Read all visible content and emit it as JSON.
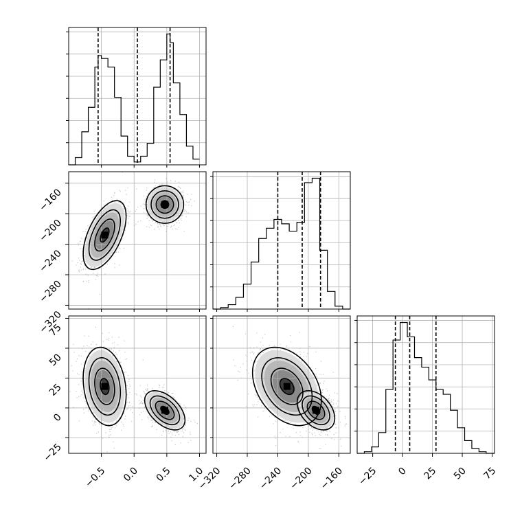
{
  "chart_data": {
    "type": "corner",
    "parameters": [
      {
        "name": "",
        "range": [
          -1.0,
          1.1
        ],
        "ticks": [
          -0.5,
          0.0,
          0.5,
          1.0
        ],
        "tick_labels": [
          "-0.5",
          "0.0",
          "0.5",
          "1.0"
        ]
      },
      {
        "name": "",
        "range": [
          -325,
          -145
        ],
        "ticks": [
          -320,
          -280,
          -240,
          -200,
          -160
        ],
        "tick_labels": [
          "-320",
          "-280",
          "-240",
          "-200",
          "-160"
        ]
      },
      {
        "name": "",
        "range": [
          -38,
          77
        ],
        "ticks": [
          -25,
          0,
          25,
          50,
          75
        ],
        "tick_labels": [
          "-25",
          "0",
          "25",
          "50",
          "75"
        ]
      }
    ],
    "grid": true,
    "quantiles": [
      [
        -0.55,
        0.05,
        0.55
      ],
      [
        -240,
        -208,
        -184
      ],
      [
        -6,
        6,
        28
      ]
    ],
    "histograms": [
      {
        "bins": [
          -1.0,
          -0.9,
          -0.8,
          -0.7,
          -0.6,
          -0.55,
          -0.5,
          -0.4,
          -0.3,
          -0.2,
          -0.1,
          0.0,
          0.1,
          0.2,
          0.3,
          0.4,
          0.5,
          0.55,
          0.6,
          0.7,
          0.8,
          0.9,
          1.0
        ],
        "counts": [
          0,
          0.05,
          0.23,
          0.4,
          0.68,
          0.76,
          0.74,
          0.68,
          0.47,
          0.2,
          0.06,
          0.02,
          0.06,
          0.15,
          0.54,
          0.73,
          0.91,
          0.85,
          0.57,
          0.35,
          0.13,
          0.04
        ]
      },
      {
        "bins": [
          -325,
          -315,
          -305,
          -295,
          -285,
          -275,
          -265,
          -255,
          -245,
          -235,
          -225,
          -215,
          -205,
          -195,
          -185,
          -175,
          -165,
          -155,
          -145
        ],
        "counts": [
          0,
          0.01,
          0.03,
          0.08,
          0.17,
          0.32,
          0.48,
          0.55,
          0.61,
          0.58,
          0.53,
          0.59,
          0.86,
          0.89,
          0.4,
          0.12,
          0.02,
          0
        ]
      },
      {
        "bins": [
          -38,
          -32,
          -26,
          -20,
          -14,
          -8,
          -2,
          4,
          10,
          16,
          22,
          28,
          34,
          40,
          46,
          52,
          58,
          64,
          70,
          77
        ],
        "counts": [
          0,
          0.01,
          0.04,
          0.13,
          0.4,
          0.71,
          0.82,
          0.73,
          0.6,
          0.54,
          0.46,
          0.4,
          0.37,
          0.27,
          0.16,
          0.08,
          0.03,
          0.01,
          0
        ]
      }
    ],
    "panels_2d": [
      {
        "x_param": 0,
        "y_param": 1,
        "modes": [
          {
            "cx": -0.45,
            "cy": -228,
            "sx": 0.16,
            "sy": 22,
            "rho": 0.55,
            "weight": 0.5
          },
          {
            "cx": 0.47,
            "cy": -188,
            "sx": 0.14,
            "sy": 12,
            "rho": 0.0,
            "weight": 0.5
          }
        ]
      },
      {
        "x_param": 0,
        "y_param": 2,
        "modes": [
          {
            "cx": -0.45,
            "cy": 18,
            "sx": 0.16,
            "sy": 16,
            "rho": -0.2,
            "weight": 0.5
          },
          {
            "cx": 0.47,
            "cy": -2,
            "sx": 0.15,
            "sy": 8,
            "rho": -0.5,
            "weight": 0.5
          }
        ]
      },
      {
        "x_param": 1,
        "y_param": 2,
        "modes": [
          {
            "cx": -228,
            "cy": 18,
            "sx": 22,
            "sy": 16,
            "rho": -0.35,
            "weight": 0.5
          },
          {
            "cx": -190,
            "cy": -2,
            "sx": 12,
            "sy": 8,
            "rho": -0.4,
            "weight": 0.5
          }
        ]
      }
    ]
  }
}
